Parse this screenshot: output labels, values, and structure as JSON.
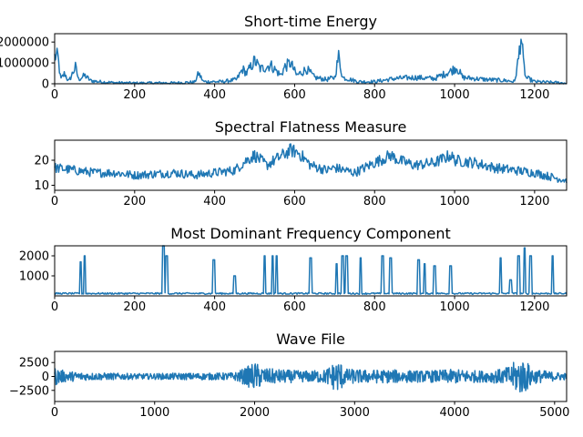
{
  "chart_data": [
    {
      "type": "line",
      "title": "Short-time Energy",
      "xlim": [
        0,
        1280
      ],
      "ylim": [
        0,
        2400000
      ],
      "xticks": [
        0,
        200,
        400,
        600,
        800,
        1000,
        1200
      ],
      "yticks": [
        0,
        1000000,
        2000000
      ],
      "ytick_labels": [
        "0",
        "1000000",
        "2000000"
      ],
      "series": [
        {
          "keypoints": [
            [
              0,
              1300000
            ],
            [
              8,
              1300000
            ],
            [
              15,
              200000
            ],
            [
              25,
              500000
            ],
            [
              35,
              100000
            ],
            [
              52,
              800000
            ],
            [
              60,
              200000
            ],
            [
              75,
              400000
            ],
            [
              90,
              150000
            ],
            [
              110,
              100000
            ],
            [
              150,
              50000
            ],
            [
              200,
              30000
            ],
            [
              260,
              40000
            ],
            [
              300,
              40000
            ],
            [
              350,
              80000
            ],
            [
              360,
              500000
            ],
            [
              372,
              100000
            ],
            [
              420,
              100000
            ],
            [
              455,
              200000
            ],
            [
              470,
              700000
            ],
            [
              480,
              500000
            ],
            [
              500,
              1100000
            ],
            [
              515,
              700000
            ],
            [
              540,
              900000
            ],
            [
              565,
              400000
            ],
            [
              575,
              800000
            ],
            [
              590,
              1000000
            ],
            [
              605,
              400000
            ],
            [
              630,
              700000
            ],
            [
              650,
              300000
            ],
            [
              680,
              200000
            ],
            [
              700,
              300000
            ],
            [
              710,
              1300000
            ],
            [
              720,
              300000
            ],
            [
              760,
              100000
            ],
            [
              800,
              100000
            ],
            [
              850,
              250000
            ],
            [
              900,
              300000
            ],
            [
              950,
              250000
            ],
            [
              990,
              600000
            ],
            [
              1005,
              800000
            ],
            [
              1020,
              300000
            ],
            [
              1080,
              200000
            ],
            [
              1130,
              150000
            ],
            [
              1150,
              100000
            ],
            [
              1160,
              1200000
            ],
            [
              1166,
              2400000
            ],
            [
              1172,
              1000000
            ],
            [
              1178,
              300000
            ],
            [
              1200,
              100000
            ],
            [
              1260,
              50000
            ],
            [
              1280,
              30000
            ]
          ],
          "noise": 0.45,
          "samples": 640
        }
      ]
    },
    {
      "type": "line",
      "title": "Spectral Flatness Measure",
      "xlim": [
        0,
        1280
      ],
      "ylim": [
        8,
        28
      ],
      "xticks": [
        0,
        200,
        400,
        600,
        800,
        1000,
        1200
      ],
      "yticks": [
        10,
        20
      ],
      "ytick_labels": [
        "10",
        "20"
      ],
      "series": [
        {
          "keypoints": [
            [
              0,
              17
            ],
            [
              50,
              16
            ],
            [
              100,
              15
            ],
            [
              150,
              15
            ],
            [
              200,
              14
            ],
            [
              250,
              14.5
            ],
            [
              300,
              15
            ],
            [
              350,
              14
            ],
            [
              400,
              15
            ],
            [
              450,
              16
            ],
            [
              480,
              20
            ],
            [
              500,
              22
            ],
            [
              530,
              18
            ],
            [
              560,
              21
            ],
            [
              590,
              24
            ],
            [
              610,
              23
            ],
            [
              640,
              18
            ],
            [
              680,
              16
            ],
            [
              700,
              17
            ],
            [
              750,
              15
            ],
            [
              800,
              19
            ],
            [
              840,
              22
            ],
            [
              860,
              20
            ],
            [
              900,
              18
            ],
            [
              950,
              19
            ],
            [
              990,
              22
            ],
            [
              1000,
              20
            ],
            [
              1050,
              19
            ],
            [
              1100,
              17
            ],
            [
              1150,
              16
            ],
            [
              1200,
              15
            ],
            [
              1250,
              13
            ],
            [
              1280,
              12
            ]
          ],
          "noise": 0.18,
          "samples": 640
        }
      ]
    },
    {
      "type": "line",
      "title": "Most Dominant Frequency Component",
      "xlim": [
        0,
        1280
      ],
      "ylim": [
        0,
        2500
      ],
      "xticks": [
        0,
        200,
        400,
        600,
        800,
        1000,
        1200
      ],
      "yticks": [
        1000,
        2000
      ],
      "ytick_labels": [
        "1000",
        "2000"
      ],
      "series": [
        {
          "baseline": 120,
          "spikes": [
            [
              65,
              1700
            ],
            [
              75,
              2000
            ],
            [
              272,
              2500
            ],
            [
              280,
              2000
            ],
            [
              398,
              1800
            ],
            [
              450,
              1000
            ],
            [
              525,
              2000
            ],
            [
              545,
              2000
            ],
            [
              555,
              2000
            ],
            [
              640,
              1900
            ],
            [
              705,
              1600
            ],
            [
              720,
              2000
            ],
            [
              730,
              2000
            ],
            [
              765,
              1900
            ],
            [
              820,
              2000
            ],
            [
              840,
              1900
            ],
            [
              910,
              1800
            ],
            [
              925,
              1600
            ],
            [
              950,
              1500
            ],
            [
              990,
              1500
            ],
            [
              1115,
              1900
            ],
            [
              1140,
              800
            ],
            [
              1160,
              2000
            ],
            [
              1175,
              2400
            ],
            [
              1190,
              2000
            ],
            [
              1245,
              2000
            ]
          ],
          "samples": 640
        }
      ]
    },
    {
      "type": "line",
      "title": "Wave File",
      "xlim": [
        0,
        5120
      ],
      "ylim": [
        -4500,
        4500
      ],
      "xticks": [
        0,
        1000,
        2000,
        3000,
        4000,
        5000
      ],
      "yticks": [
        -2500,
        0,
        2500
      ],
      "ytick_labels": [
        "−2500",
        "0",
        "2500"
      ],
      "series": [
        {
          "envelope": [
            [
              0,
              1700
            ],
            [
              100,
              1000
            ],
            [
              300,
              700
            ],
            [
              600,
              600
            ],
            [
              900,
              500
            ],
            [
              1200,
              600
            ],
            [
              1500,
              600
            ],
            [
              1800,
              700
            ],
            [
              1900,
              1500
            ],
            [
              2000,
              2600
            ],
            [
              2100,
              1500
            ],
            [
              2300,
              1200
            ],
            [
              2500,
              1000
            ],
            [
              2700,
              1200
            ],
            [
              2800,
              2600
            ],
            [
              2850,
              3000
            ],
            [
              2900,
              1400
            ],
            [
              3100,
              1200
            ],
            [
              3400,
              1200
            ],
            [
              3700,
              1000
            ],
            [
              4000,
              1300
            ],
            [
              4300,
              1000
            ],
            [
              4500,
              1400
            ],
            [
              4650,
              3300
            ],
            [
              4700,
              3000
            ],
            [
              4800,
              1300
            ],
            [
              5000,
              800
            ],
            [
              5120,
              600
            ]
          ],
          "samples": 1100
        }
      ]
    }
  ]
}
